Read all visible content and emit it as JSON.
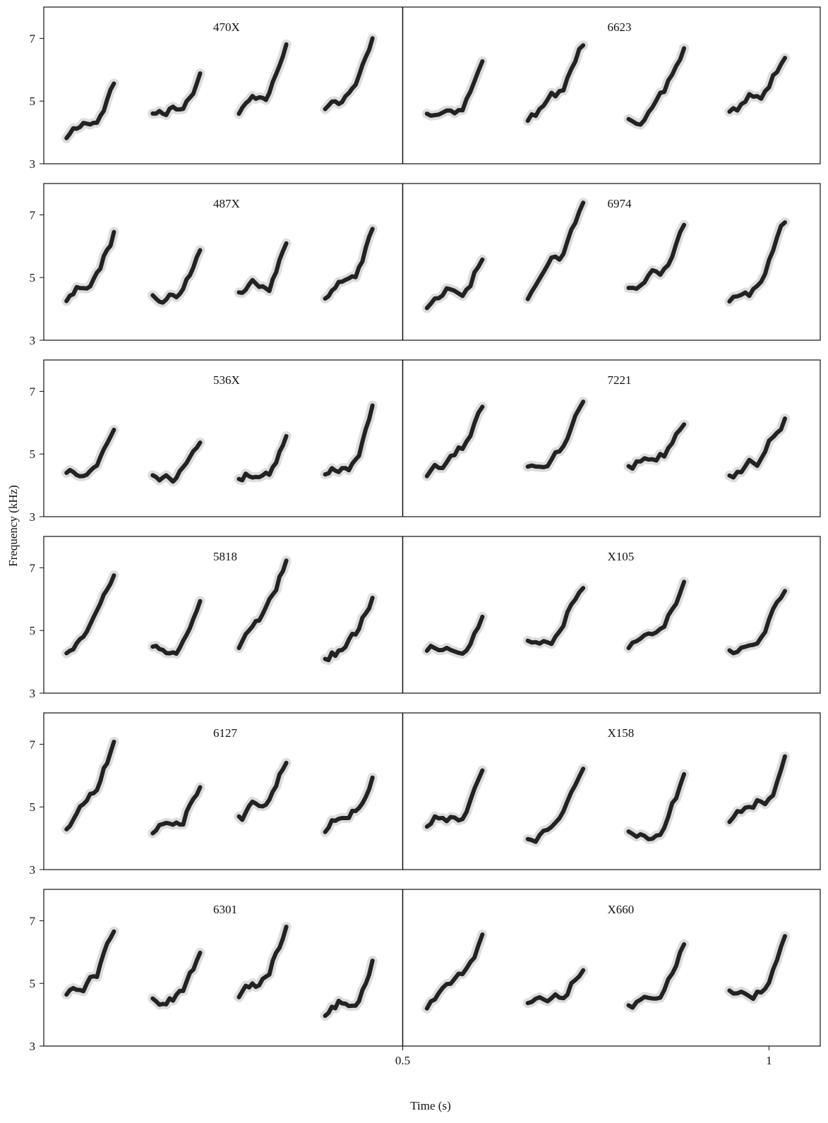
{
  "chart_data": {
    "type": "spectrogram",
    "xlabel": "Time (s)",
    "ylabel": "Frequency (kHz)",
    "xlim": [
      0.01,
      1.07
    ],
    "xticks": [
      0.5,
      1
    ],
    "ylim": [
      3,
      8
    ],
    "yticks": [
      3,
      5,
      7
    ],
    "divider": 0.5,
    "panels": [
      [
        "470X",
        "6623"
      ],
      [
        "487X",
        "6974"
      ],
      [
        "536X",
        "7221"
      ],
      [
        "5818",
        "X105"
      ],
      [
        "6127",
        "X158"
      ],
      [
        "6301",
        "X660"
      ]
    ]
  }
}
